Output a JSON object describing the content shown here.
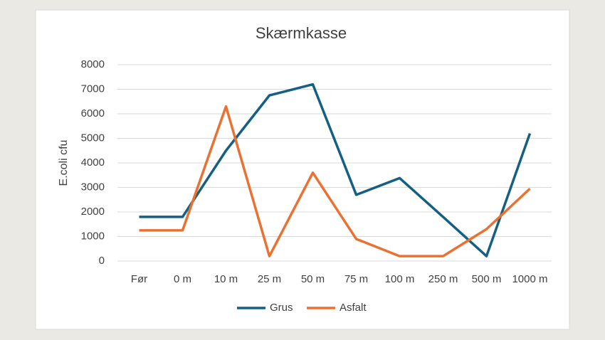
{
  "chart_data": {
    "type": "line",
    "title": "Skærmkasse",
    "y_label": "E.coli cfu",
    "categories": [
      "Før",
      "0 m",
      "10 m",
      "25 m",
      "50 m",
      "75 m",
      "100 m",
      "250 m",
      "500 m",
      "1000 m"
    ],
    "series": [
      {
        "name": "Grus",
        "color": "#156082",
        "values": [
          1800,
          1800,
          4500,
          6750,
          7200,
          2700,
          3380,
          1800,
          200,
          5200
        ]
      },
      {
        "name": "Asfalt",
        "color": "#e97132",
        "values": [
          1250,
          1250,
          6300,
          200,
          3600,
          900,
          200,
          200,
          1300,
          2950
        ]
      }
    ],
    "ylim": [
      0,
      8000
    ],
    "yticks": [
      0,
      1000,
      2000,
      3000,
      4000,
      5000,
      6000,
      7000,
      8000
    ],
    "grid": true,
    "legend": "bottom"
  }
}
